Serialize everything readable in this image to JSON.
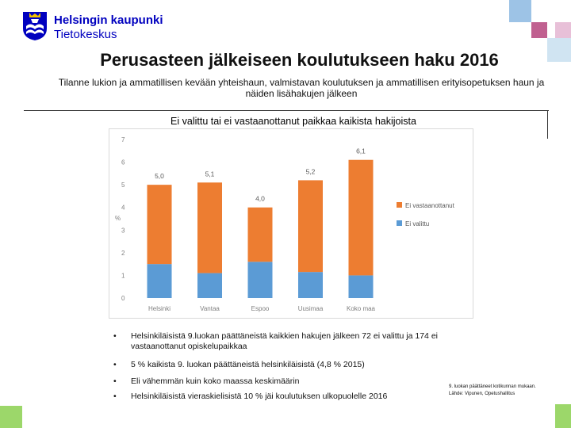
{
  "logo": {
    "line1": "Helsingin kaupunki",
    "line2": "Tietokeskus"
  },
  "title": "Perusasteen jälkeiseen koulutukseen haku 2016",
  "subtitle": "Tilanne lukion ja ammatillisen kevään yhteishaun, valmistavan koulutuksen ja ammatillisen erityisopetuksen haun ja näiden lisähakujen jälkeen",
  "colors": {
    "orange": "#ed7d31",
    "blue": "#5b9bd5",
    "deco_blue": "#9dc3e6",
    "deco_pink": "#c06090",
    "deco_green": "#9cd76a",
    "brand_blue": "#0000bf"
  },
  "chart_data": {
    "type": "bar",
    "stacked": true,
    "title": "Ei valittu tai ei vastaanottanut paikkaa kaikista hakijoista",
    "ylabel": "%",
    "xlabel": "",
    "ylim": [
      0,
      7
    ],
    "yticks": [
      "0",
      "1",
      "2",
      "3",
      "4",
      "5",
      "6",
      "7"
    ],
    "categories": [
      "Helsinki",
      "Vantaa",
      "Espoo",
      "Uusimaa",
      "Koko maa"
    ],
    "series": [
      {
        "name": "Ei valittu",
        "values": [
          1.5,
          1.1,
          1.6,
          1.15,
          1.0
        ],
        "color": "#5b9bd5"
      },
      {
        "name": "Ei vastaanottanut",
        "values": [
          3.5,
          4.0,
          2.4,
          4.05,
          5.1
        ],
        "color": "#ed7d31"
      }
    ],
    "totals": [
      5.0,
      5.1,
      4.0,
      5.2,
      6.1
    ],
    "total_labels": [
      "5,0",
      "5,1",
      "4,0",
      "5,2",
      "6,1"
    ],
    "legend_position": "right"
  },
  "bullets": [
    "Helsinkiläisistä 9.luokan päättäneistä kaikkien hakujen jälkeen 72 ei valittu ja 174 ei vastaanottanut opiskelupaikkaa",
    "5 % kaikista 9. luokan päättäneistä helsinkiläisistä (4,8 % 2015)",
    "Eli vähemmän kuin koko maassa keskimäärin",
    "Helsinkiläisistä vieraskielisistä 10 % jäi koulutuksen ulkopuolelle 2016"
  ],
  "bullet_symbol": "•",
  "source": {
    "line1": "9. luokan päättäneet kotikunnan mukaan.",
    "line2": "Lähde: Vipunen, Opetushallitus"
  }
}
